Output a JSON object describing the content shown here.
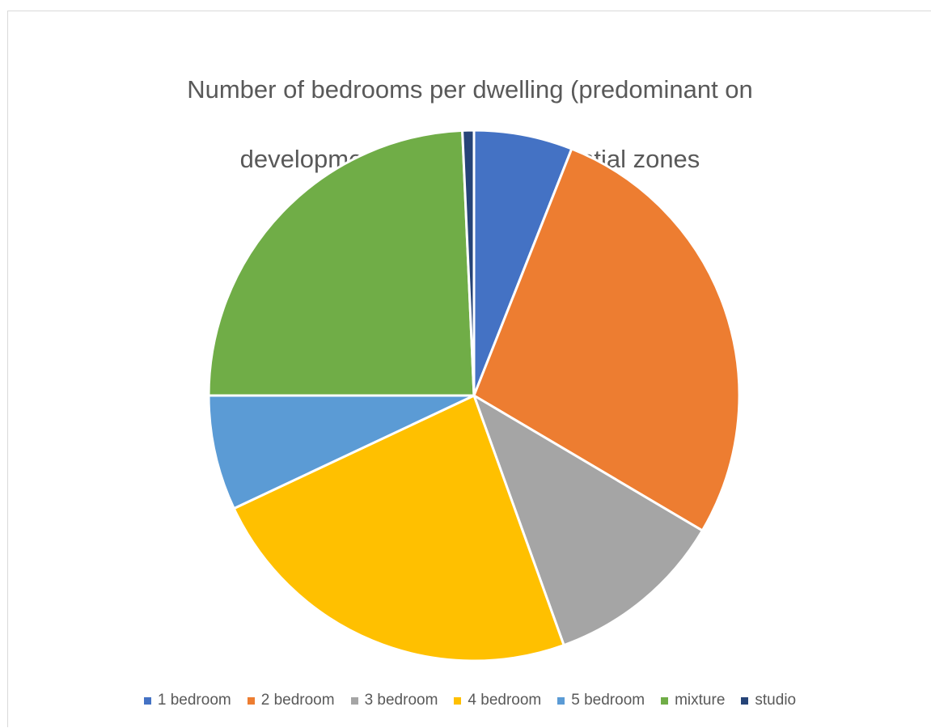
{
  "chart_data": {
    "type": "pie",
    "title": "Number of bedrooms per dwelling (predominant on development) across all residential zones",
    "title_lines": [
      "Number of bedrooms per dwelling (predominant on",
      "development) across all residential zones"
    ],
    "categories": [
      "1 bedroom",
      "2 bedroom",
      "3 bedroom",
      "4 bedroom",
      "5 bedroom",
      "mixture",
      "studio"
    ],
    "values": [
      6,
      27.5,
      11,
      23.5,
      7,
      24.3,
      0.7
    ],
    "colors": [
      "#4472C4",
      "#ED7D31",
      "#A5A5A5",
      "#FFC000",
      "#5B9BD5",
      "#70AD47",
      "#264478"
    ],
    "legend_position": "bottom",
    "start_angle_deg": 0,
    "direction": "clockwise"
  }
}
